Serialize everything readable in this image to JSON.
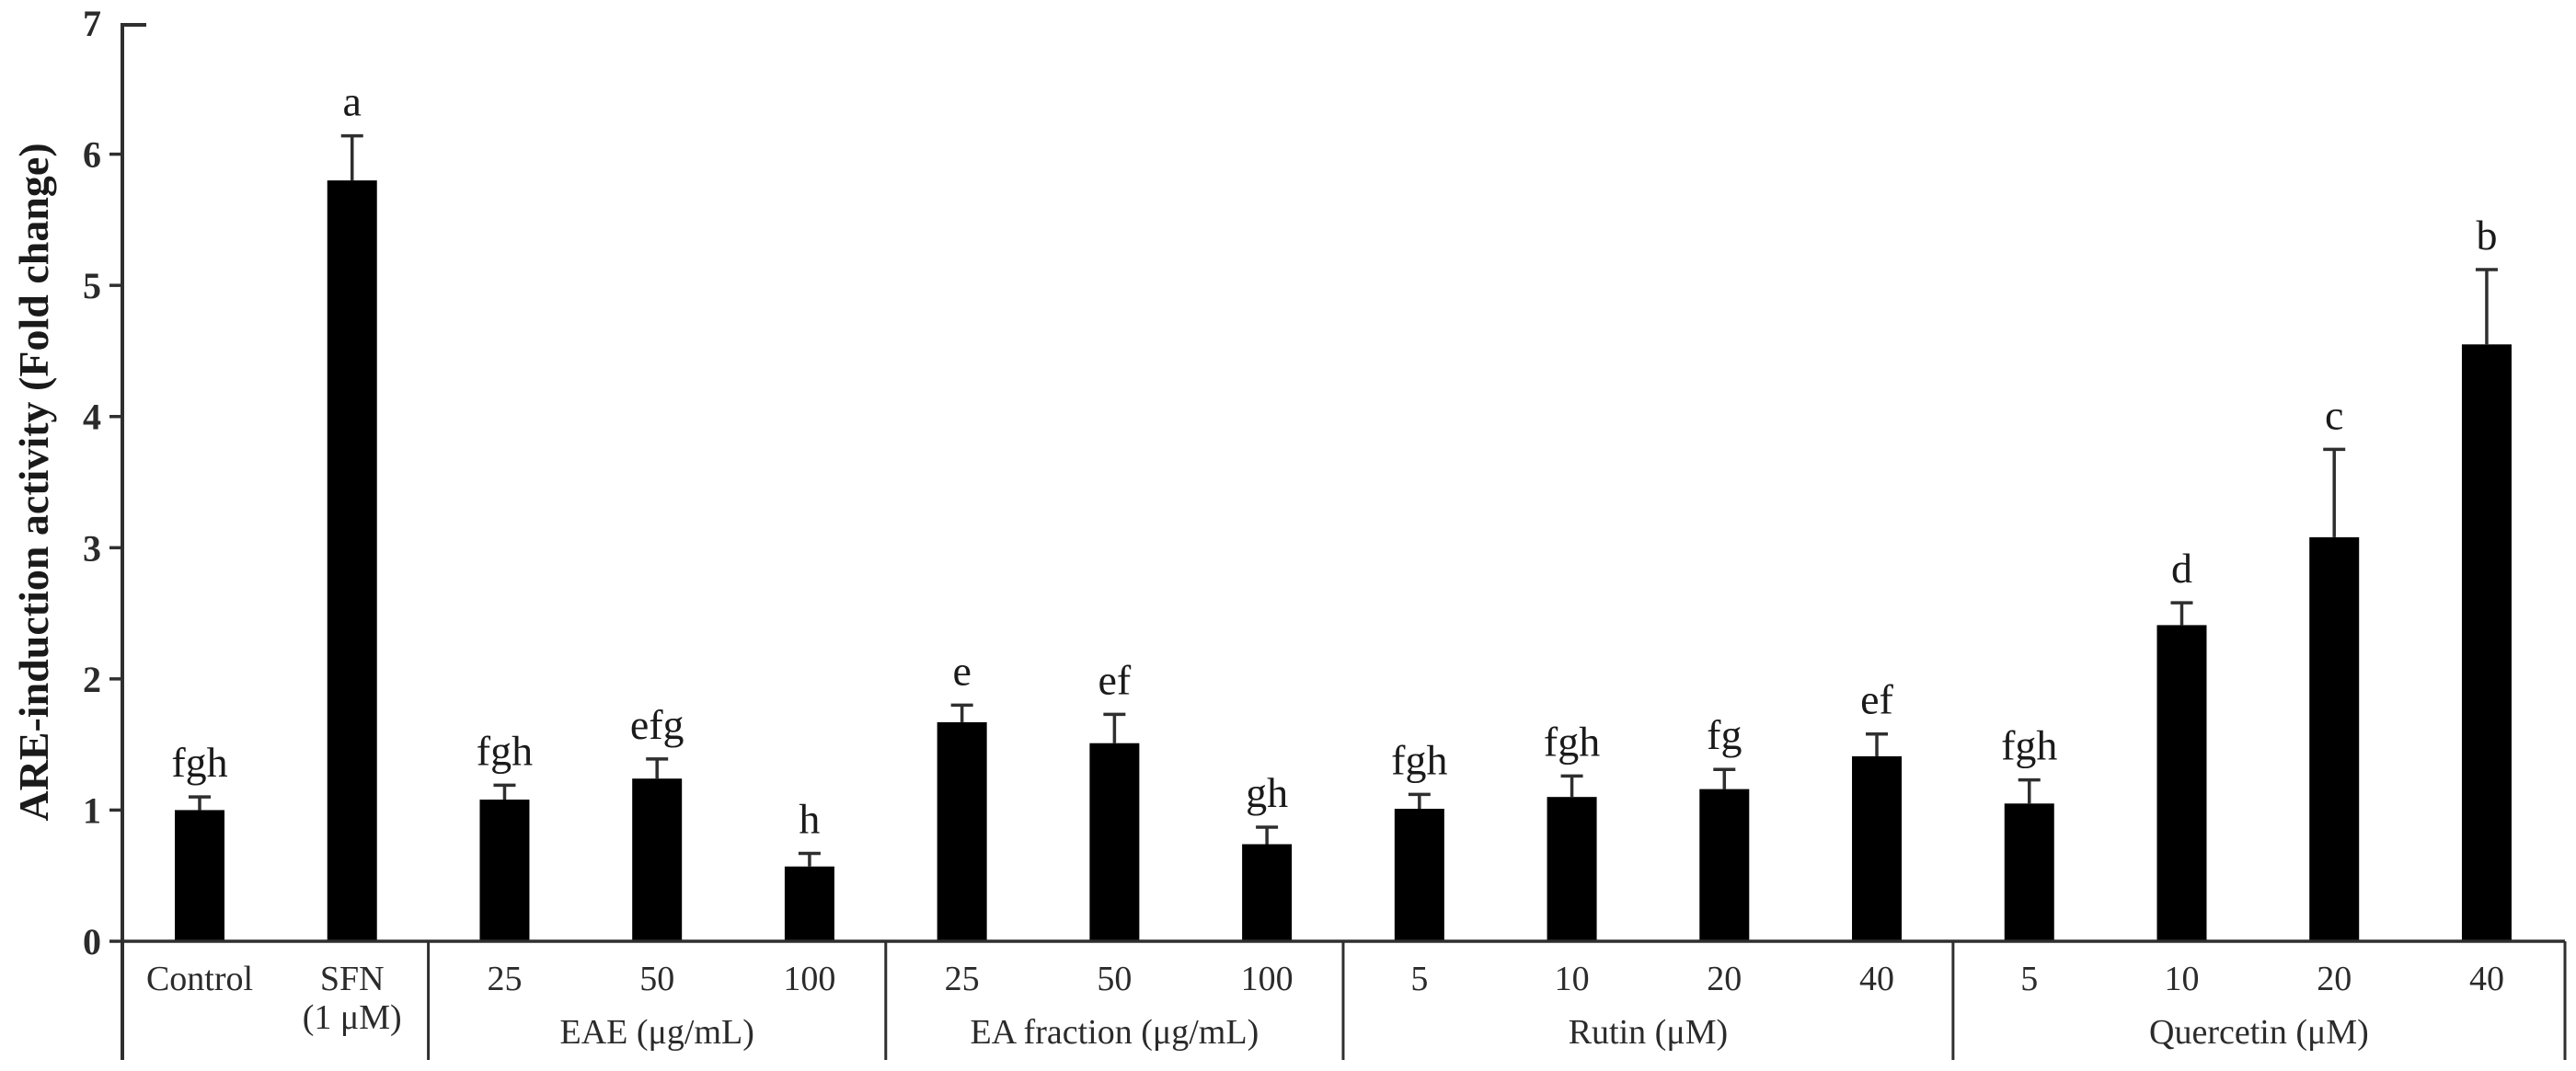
{
  "figure": {
    "background": "#ffffff",
    "bar_color": "#000000",
    "axis_color": "#2f2f2f",
    "text_color": "#2b2b2b",
    "letter_color": "#1a1a1a"
  },
  "chart_data": {
    "type": "bar",
    "title": "",
    "xlabel": "",
    "ylabel": "ARE-induction activity (Fold change)",
    "ylim": [
      0,
      7
    ],
    "yticks": [
      0,
      1,
      2,
      3,
      4,
      5,
      6,
      7
    ],
    "grid": false,
    "legend": null,
    "error_bar_style": "upper-only",
    "groups": [
      {
        "label": "",
        "bars": [
          {
            "category": "Control",
            "value": 1.0,
            "error": 0.1,
            "letter": "fgh"
          },
          {
            "category": [
              "SFN",
              "(1 μM)"
            ],
            "value": 5.8,
            "error": 0.34,
            "letter": "a"
          }
        ]
      },
      {
        "label": "EAE (μg/mL)",
        "bars": [
          {
            "category": "25",
            "value": 1.08,
            "error": 0.11,
            "letter": "fgh"
          },
          {
            "category": "50",
            "value": 1.24,
            "error": 0.15,
            "letter": "efg"
          },
          {
            "category": "100",
            "value": 0.57,
            "error": 0.1,
            "letter": "h"
          }
        ]
      },
      {
        "label": "EA fraction (μg/mL)",
        "bars": [
          {
            "category": "25",
            "value": 1.67,
            "error": 0.13,
            "letter": "e"
          },
          {
            "category": "50",
            "value": 1.51,
            "error": 0.22,
            "letter": "ef"
          },
          {
            "category": "100",
            "value": 0.74,
            "error": 0.13,
            "letter": "gh"
          }
        ]
      },
      {
        "label": "Rutin (μM)",
        "bars": [
          {
            "category": "5",
            "value": 1.01,
            "error": 0.11,
            "letter": "fgh"
          },
          {
            "category": "10",
            "value": 1.1,
            "error": 0.16,
            "letter": "fgh"
          },
          {
            "category": "20",
            "value": 1.16,
            "error": 0.15,
            "letter": "fg"
          },
          {
            "category": "40",
            "value": 1.41,
            "error": 0.17,
            "letter": "ef"
          }
        ]
      },
      {
        "label": "Quercetin (μM)",
        "bars": [
          {
            "category": "5",
            "value": 1.05,
            "error": 0.18,
            "letter": "fgh"
          },
          {
            "category": "10",
            "value": 2.41,
            "error": 0.17,
            "letter": "d"
          },
          {
            "category": "20",
            "value": 3.08,
            "error": 0.67,
            "letter": "c"
          },
          {
            "category": "40",
            "value": 4.55,
            "error": 0.57,
            "letter": "b"
          }
        ]
      }
    ]
  }
}
